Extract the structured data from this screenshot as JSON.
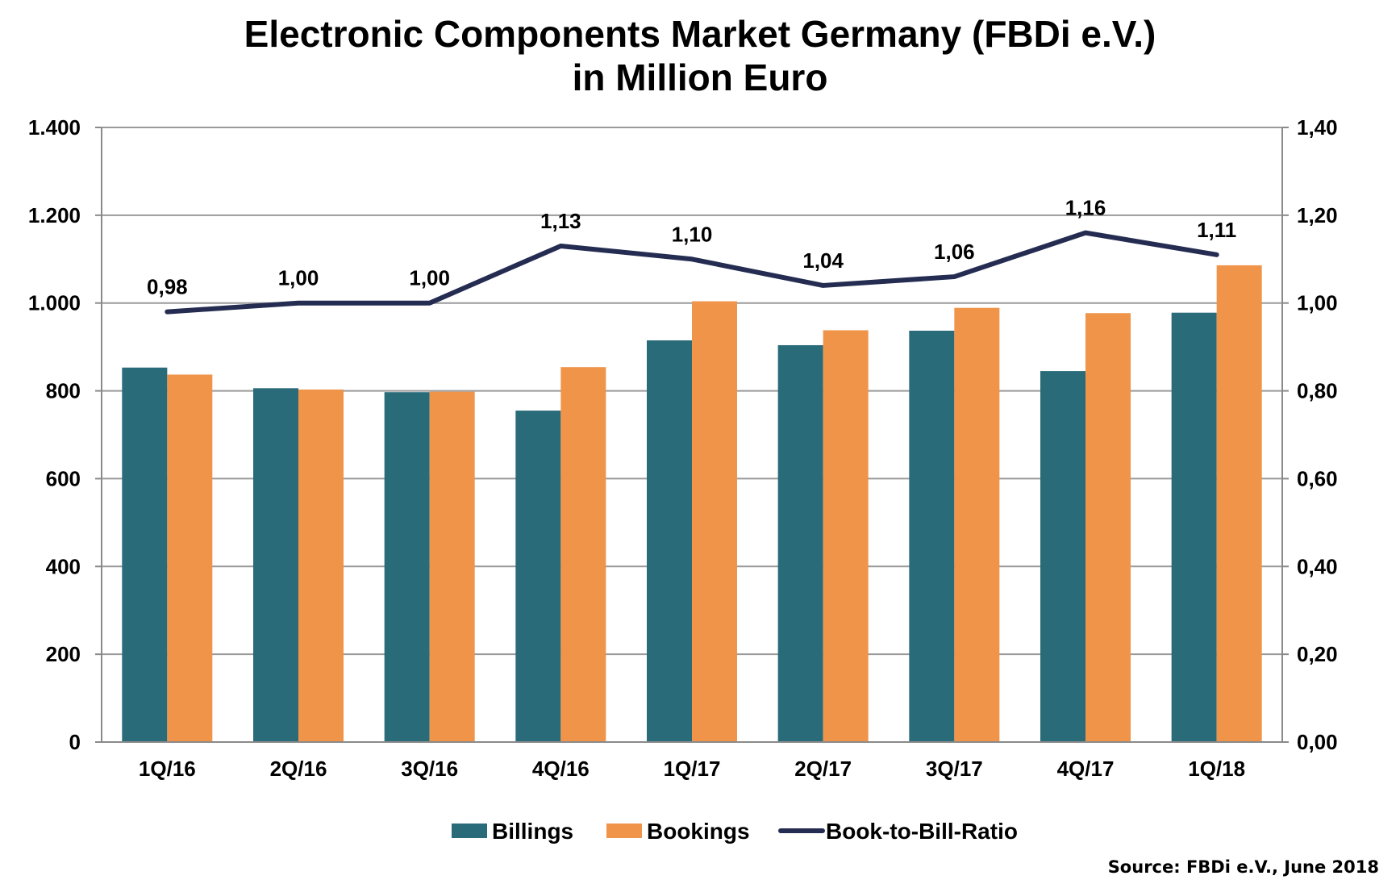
{
  "chart_data": {
    "type": "bar",
    "title": "Electronic Components Market Germany (FBDi e.V.)",
    "subtitle": "in Million Euro",
    "categories": [
      "1Q/16",
      "2Q/16",
      "3Q/16",
      "4Q/16",
      "1Q/17",
      "2Q/17",
      "3Q/17",
      "4Q/17",
      "1Q/18"
    ],
    "series": [
      {
        "name": "Billings",
        "type": "bar",
        "axis": "left",
        "color": "#2a6b7a",
        "values": [
          853,
          806,
          797,
          755,
          915,
          904,
          937,
          845,
          978
        ]
      },
      {
        "name": "Bookings",
        "type": "bar",
        "axis": "left",
        "color": "#f0944a",
        "values": [
          837,
          803,
          798,
          854,
          1004,
          938,
          989,
          977,
          1086
        ]
      },
      {
        "name": "Book-to-Bill-Ratio",
        "type": "line",
        "axis": "right",
        "color": "#252c52",
        "values": [
          0.98,
          1.0,
          1.0,
          1.13,
          1.1,
          1.04,
          1.06,
          1.16,
          1.11
        ],
        "labels": [
          "0,98",
          "1,00",
          "1,00",
          "1,13",
          "1,10",
          "1,04",
          "1,06",
          "1,16",
          "1,11"
        ]
      }
    ],
    "left_axis": {
      "ylim": [
        0,
        1400
      ],
      "ticks": [
        0,
        200,
        400,
        600,
        800,
        1000,
        1200,
        1400
      ],
      "tick_labels": [
        "0",
        "200",
        "400",
        "600",
        "800",
        "1.000",
        "1.200",
        "1.400"
      ]
    },
    "right_axis": {
      "ylim": [
        0,
        1.4
      ],
      "ticks": [
        0,
        0.2,
        0.4,
        0.6,
        0.8,
        1.0,
        1.2,
        1.4
      ],
      "tick_labels": [
        "0,00",
        "0,20",
        "0,40",
        "0,60",
        "0,80",
        "1,00",
        "1,20",
        "1,40"
      ]
    },
    "grid": true,
    "legend_position": "bottom",
    "legend": [
      "Billings",
      "Bookings",
      "Book-to-Bill-Ratio"
    ],
    "source": "Source: FBDi e.V., June 2018"
  }
}
